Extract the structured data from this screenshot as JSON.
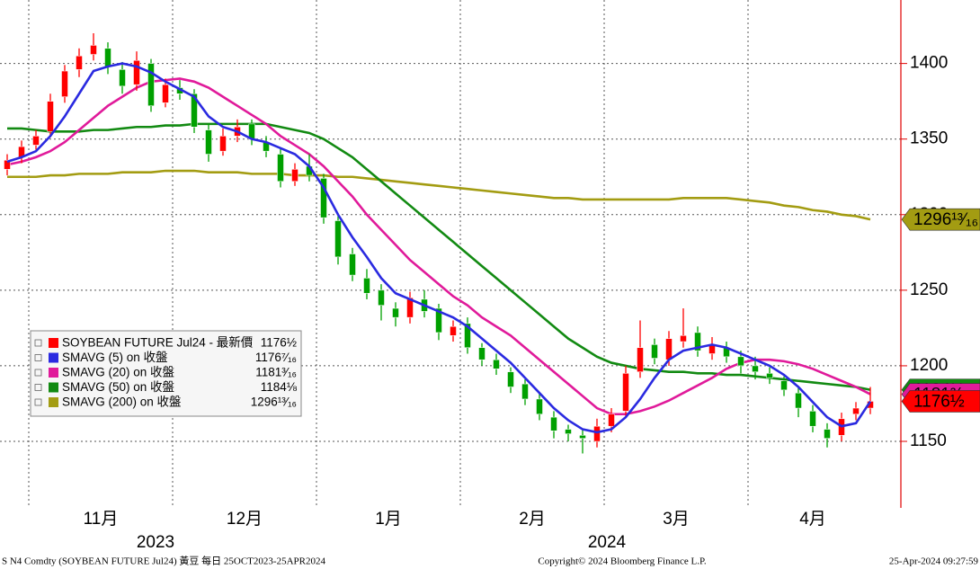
{
  "chart_data": {
    "type": "candlestick",
    "categories": [
      null,
      null,
      "11月",
      null,
      null,
      null,
      null,
      null,
      null,
      null,
      null,
      null,
      "12月",
      null,
      null,
      null,
      null,
      null,
      null,
      null,
      null,
      null,
      "1月",
      null,
      null,
      null,
      null,
      null,
      null,
      null,
      null,
      null,
      "2月",
      null,
      null,
      null,
      null,
      null,
      null,
      null,
      null,
      null,
      "3月",
      null,
      null,
      null,
      null,
      null,
      null,
      null,
      null,
      null,
      "4月",
      null,
      null,
      null,
      null,
      null,
      null,
      null,
      null
    ],
    "year_labels": [
      "2023",
      "2024"
    ],
    "ohlc": {
      "name": "SOYBEAN FUTURE Jul24 - 最新價",
      "last_label": "1176½",
      "up_color": "#ff0000",
      "down_color": "#00a000",
      "open": [
        1330,
        1338,
        1346,
        1355,
        1378,
        1396,
        1406,
        1410,
        1396,
        1386,
        1400,
        1374,
        1384,
        1380,
        1356,
        1342,
        1352,
        1360,
        1348,
        1340,
        1322,
        1332,
        1324,
        1296,
        1274,
        1258,
        1250,
        1238,
        1232,
        1244,
        1238,
        1220,
        1228,
        1212,
        1204,
        1196,
        1188,
        1178,
        1166,
        1158,
        1154,
        1150,
        1160,
        1170,
        1196,
        1214,
        1204,
        1216,
        1222,
        1208,
        1212,
        1206,
        1200,
        1195,
        1190,
        1182,
        1170,
        1158,
        1154,
        1168,
        1172
      ],
      "high": [
        1340,
        1349,
        1356,
        1380,
        1399,
        1410,
        1420,
        1414,
        1401,
        1408,
        1403,
        1390,
        1389,
        1383,
        1360,
        1357,
        1363,
        1363,
        1352,
        1344,
        1334,
        1340,
        1327,
        1299,
        1278,
        1264,
        1254,
        1242,
        1249,
        1250,
        1241,
        1230,
        1232,
        1215,
        1208,
        1199,
        1191,
        1182,
        1170,
        1161,
        1158,
        1165,
        1172,
        1200,
        1230,
        1218,
        1223,
        1238,
        1226,
        1219,
        1216,
        1210,
        1206,
        1199,
        1193,
        1186,
        1174,
        1162,
        1169,
        1176,
        1186
      ],
      "low": [
        1326,
        1334,
        1343,
        1351,
        1374,
        1391,
        1402,
        1393,
        1380,
        1382,
        1368,
        1371,
        1376,
        1354,
        1335,
        1339,
        1348,
        1346,
        1338,
        1318,
        1319,
        1322,
        1294,
        1267,
        1256,
        1244,
        1230,
        1226,
        1228,
        1232,
        1217,
        1216,
        1208,
        1200,
        1194,
        1182,
        1174,
        1164,
        1152,
        1150,
        1142,
        1146,
        1156,
        1166,
        1192,
        1201,
        1200,
        1212,
        1206,
        1204,
        1202,
        1195,
        1191,
        1188,
        1180,
        1166,
        1156,
        1146,
        1150,
        1164,
        1168
      ],
      "close": [
        1336,
        1345,
        1352,
        1375,
        1395,
        1405,
        1412,
        1398,
        1385,
        1402,
        1372,
        1386,
        1380,
        1358,
        1340,
        1352,
        1358,
        1350,
        1342,
        1322,
        1330,
        1326,
        1298,
        1272,
        1260,
        1248,
        1240,
        1232,
        1245,
        1236,
        1222,
        1226,
        1212,
        1204,
        1198,
        1186,
        1178,
        1168,
        1157,
        1155,
        1152,
        1160,
        1168,
        1195,
        1212,
        1205,
        1218,
        1220,
        1210,
        1214,
        1206,
        1200,
        1196,
        1192,
        1184,
        1172,
        1160,
        1152,
        1165,
        1172,
        1176.5
      ]
    },
    "series": [
      {
        "name": "SMAVG (5)  on 收盤",
        "color": "#2a2ae0",
        "last_label": "1176⁷⁄₁₆",
        "values": [
          1335,
          1338,
          1342,
          1352,
          1365,
          1380,
          1395,
          1398,
          1400,
          1398,
          1394,
          1388,
          1383,
          1378,
          1365,
          1358,
          1355,
          1350,
          1348,
          1344,
          1340,
          1332,
          1318,
          1300,
          1285,
          1272,
          1258,
          1248,
          1244,
          1240,
          1236,
          1232,
          1226,
          1218,
          1210,
          1202,
          1192,
          1182,
          1172,
          1164,
          1158,
          1156,
          1158,
          1166,
          1178,
          1192,
          1204,
          1210,
          1212,
          1214,
          1212,
          1208,
          1204,
          1200,
          1194,
          1186,
          1176,
          1166,
          1160,
          1162,
          1176.4375
        ]
      },
      {
        "name": "SMAVG (20)  on 收盤",
        "color": "#e01a9a",
        "last_label": "1181³⁄₁₆",
        "values": [
          1333,
          1335,
          1338,
          1342,
          1348,
          1356,
          1364,
          1372,
          1378,
          1384,
          1388,
          1389,
          1390,
          1388,
          1384,
          1378,
          1372,
          1366,
          1360,
          1352,
          1346,
          1340,
          1332,
          1322,
          1312,
          1300,
          1290,
          1280,
          1270,
          1262,
          1254,
          1246,
          1240,
          1232,
          1226,
          1220,
          1212,
          1204,
          1196,
          1188,
          1180,
          1172,
          1168,
          1168,
          1170,
          1173,
          1177,
          1182,
          1187,
          1192,
          1198,
          1202,
          1204,
          1204,
          1203,
          1201,
          1198,
          1194,
          1190,
          1186,
          1181.1875
        ]
      },
      {
        "name": "SMAVG (50)  on 收盤",
        "color": "#128a12",
        "last_label": "1184⅛",
        "values": [
          1357,
          1357,
          1356,
          1355,
          1355,
          1355,
          1356,
          1356,
          1357,
          1358,
          1358,
          1359,
          1359,
          1360,
          1360,
          1360,
          1360,
          1360,
          1360,
          1358,
          1356,
          1354,
          1350,
          1344,
          1338,
          1330,
          1322,
          1314,
          1306,
          1298,
          1290,
          1282,
          1274,
          1266,
          1258,
          1250,
          1242,
          1234,
          1226,
          1218,
          1212,
          1206,
          1202,
          1200,
          1198,
          1197,
          1196,
          1196,
          1195,
          1195,
          1194,
          1194,
          1193,
          1192,
          1191,
          1190,
          1189,
          1188,
          1187,
          1186,
          1184.125
        ]
      },
      {
        "name": "SMAVG (200)  on 收盤",
        "color": "#a39c12",
        "last_label": "1296¹³⁄₁₆",
        "values": [
          1325,
          1325,
          1325,
          1326,
          1326,
          1327,
          1327,
          1327,
          1328,
          1328,
          1328,
          1329,
          1329,
          1329,
          1328,
          1328,
          1328,
          1327,
          1327,
          1327,
          1326,
          1326,
          1326,
          1325,
          1325,
          1324,
          1323,
          1322,
          1321,
          1320,
          1319,
          1318,
          1317,
          1316,
          1315,
          1314,
          1313,
          1312,
          1311,
          1311,
          1310,
          1310,
          1310,
          1310,
          1310,
          1310,
          1310,
          1311,
          1311,
          1311,
          1311,
          1310,
          1309,
          1308,
          1306,
          1305,
          1303,
          1302,
          1300,
          1299,
          1296.8125
        ]
      }
    ],
    "ylim": [
      1106,
      1442
    ],
    "yticks": [
      1150,
      1200,
      1250,
      1300,
      1350,
      1400
    ],
    "grid": true,
    "footer": {
      "left": "S N4 Comdty (SOYBEAN FUTURE   Jul24) 黃豆  每日 25OCT2023-25APR2024",
      "center": "Copyright© 2024 Bloomberg Finance L.P.",
      "right": "25-Apr-2024 09:27:59"
    }
  }
}
